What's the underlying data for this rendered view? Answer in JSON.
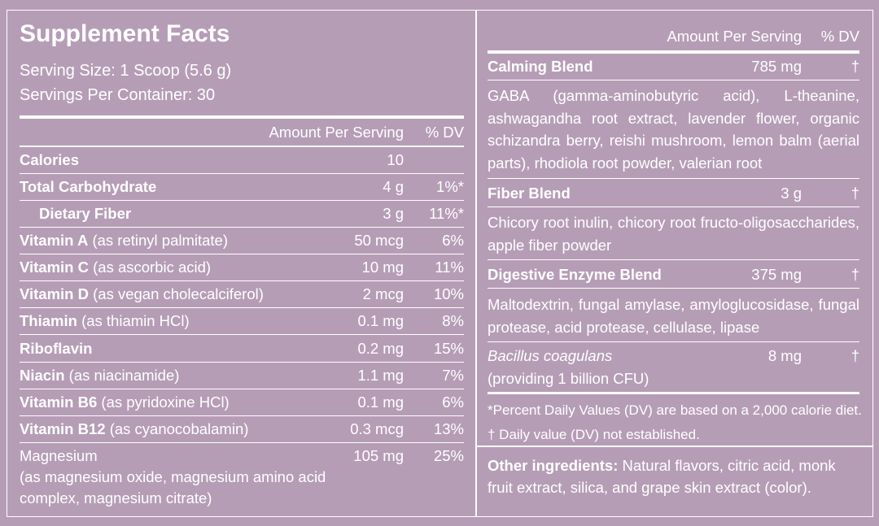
{
  "left": {
    "title": "Supplement Facts",
    "serving_size": "Serving Size: 1 Scoop (5.6 g)",
    "servings_per_container": "Servings Per Container: 30",
    "header": [
      "Amount Per Serving",
      "% DV"
    ],
    "rows": [
      {
        "name": "Calories",
        "amount": "10"
      },
      {
        "name": "Total Carbohydrate",
        "amount": "4 g",
        "dv": "1%*"
      },
      {
        "name": "Dietary Fiber",
        "amount": "3 g",
        "dv": "11%*"
      },
      {
        "name": "Vitamin A",
        "detail": "(as retinyl palmitate)",
        "amount": "50 mcg",
        "dv": "6%"
      },
      {
        "name": "Vitamin C",
        "detail": "(as ascorbic acid)",
        "amount": "10 mg",
        "dv": "11%"
      },
      {
        "name": "Vitamin D",
        "detail": "(as vegan cholecalciferol)",
        "amount": "2 mcg",
        "dv": "10%"
      },
      {
        "name": "Thiamin",
        "detail": "(as thiamin HCl)",
        "amount": "0.1 mg",
        "dv": "8%"
      },
      {
        "name": "Riboflavin",
        "amount": "0.2 mg",
        "dv": "15%"
      },
      {
        "name": "Niacin",
        "detail": "(as niacinamide)",
        "amount": "1.1 mg",
        "dv": "7%"
      },
      {
        "name": "Vitamin B6",
        "detail": "(as pyridoxine HCl)",
        "amount": "0.1 mg",
        "dv": "6%"
      },
      {
        "name": "Vitamin B12",
        "detail": "(as cyanocobalamin)",
        "amount": "0.3 mcg",
        "dv": "13%"
      },
      {
        "name": "Magnesium",
        "detail": "(as magnesium oxide, magnesium amino acid complex, magnesium citrate)",
        "amount": "105 mg",
        "dv": "25%"
      }
    ]
  },
  "right": {
    "header": [
      "Amount Per Serving",
      "% DV"
    ],
    "blends": [
      {
        "name": "Calming Blend",
        "amount": "785 mg",
        "dv": "†",
        "ingredients": "GABA (gamma-aminobutyric acid), L-theanine, ashwagandha root extract, lavender flower, organic schizandra berry, reishi mushroom, lemon balm (aerial parts), rhodiola root powder, valerian root"
      },
      {
        "name": "Fiber Blend",
        "amount": "3 g",
        "dv": "†",
        "ingredients": "Chicory root inulin, chicory root fructo-oligosaccharides, apple fiber powder"
      },
      {
        "name": "Digestive Enzyme Blend",
        "amount": "375 mg",
        "dv": "†",
        "ingredients": "Maltodextrin, fungal amylase, amyloglucosidase, fungal protease, acid protease, cellulase, lipase"
      },
      {
        "name": "Bacillus coagulans",
        "amount": "8 mg",
        "dv": "†",
        "ingredients": "(providing 1 billion CFU)"
      }
    ],
    "footnotes": [
      "*Percent Daily Values (DV) are based on a 2,000 calorie diet.",
      "† Daily value (DV) not established."
    ],
    "other_ingredients": {
      "label": "Other ingredients:",
      "text": "Natural flavors, citric acid, monk fruit extract, silica, and grape skin extract (color)."
    }
  }
}
